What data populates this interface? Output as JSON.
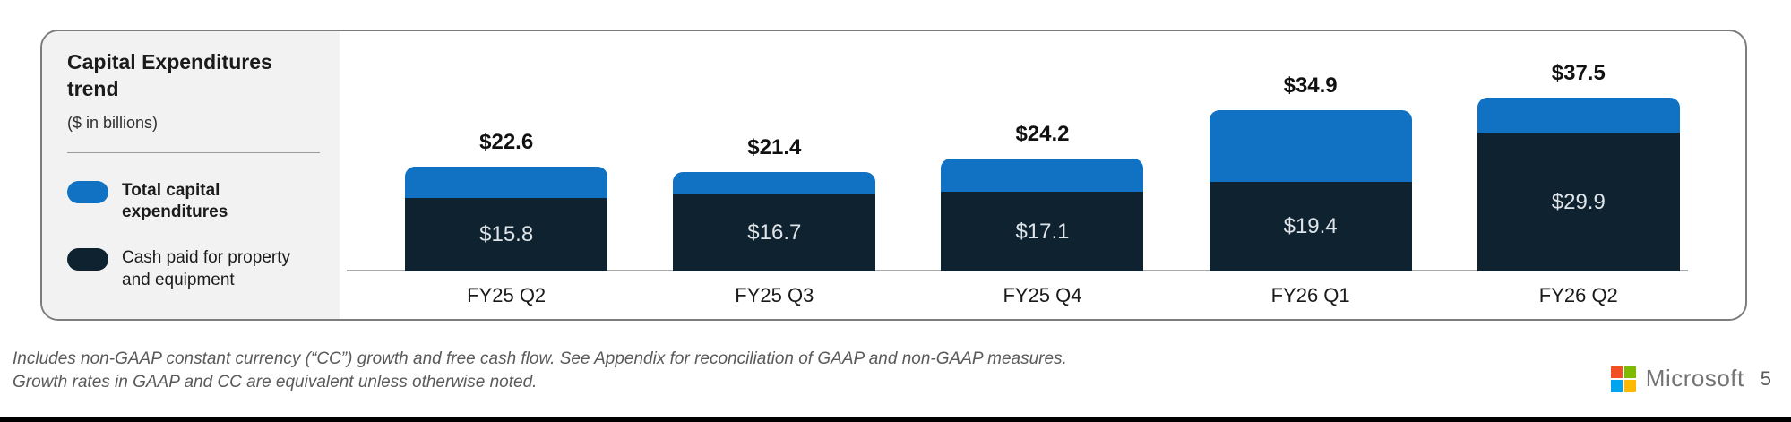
{
  "card": {
    "title": "Capital Expenditures trend",
    "subtitle": "($ in billions)",
    "legend": [
      {
        "name": "total-capital-expenditures",
        "label": "Total capital expenditures",
        "color": "#1171c3"
      },
      {
        "name": "cash-paid-for-property-and-equipment",
        "label": "Cash paid for property and equipment",
        "color": "#0e2230"
      }
    ]
  },
  "chart_data": {
    "type": "bar",
    "stacked": true,
    "title": "Capital Expenditures trend",
    "ylabel": "$ in billions",
    "ylim": [
      0,
      40
    ],
    "grid": false,
    "legend_position": "left",
    "categories": [
      "FY25 Q2",
      "FY25 Q3",
      "FY25 Q4",
      "FY26 Q1",
      "FY26 Q2"
    ],
    "series": [
      {
        "name": "Total capital expenditures",
        "color": "#1171c3",
        "values": [
          22.6,
          21.4,
          24.2,
          34.9,
          37.5
        ],
        "labels": [
          "$22.6",
          "$21.4",
          "$24.2",
          "$34.9",
          "$37.5"
        ],
        "label_position": "above-bar"
      },
      {
        "name": "Cash paid for property and equipment",
        "color": "#0e2230",
        "values": [
          15.8,
          16.7,
          17.1,
          19.4,
          29.9
        ],
        "labels": [
          "$15.8",
          "$16.7",
          "$17.1",
          "$19.4",
          "$29.9"
        ],
        "label_position": "inside-bar"
      }
    ]
  },
  "footnote": {
    "line1": "Includes non-GAAP constant currency (“CC”) growth and free cash flow. See Appendix for reconciliation of GAAP and non-GAAP measures.",
    "line2": "Growth rates in GAAP and CC are equivalent unless otherwise noted."
  },
  "footer": {
    "brand": "Microsoft",
    "page_number": "5",
    "logo_colors": {
      "top_left": "#f25022",
      "top_right": "#7fba00",
      "bottom_left": "#00a4ef",
      "bottom_right": "#ffb900"
    }
  }
}
